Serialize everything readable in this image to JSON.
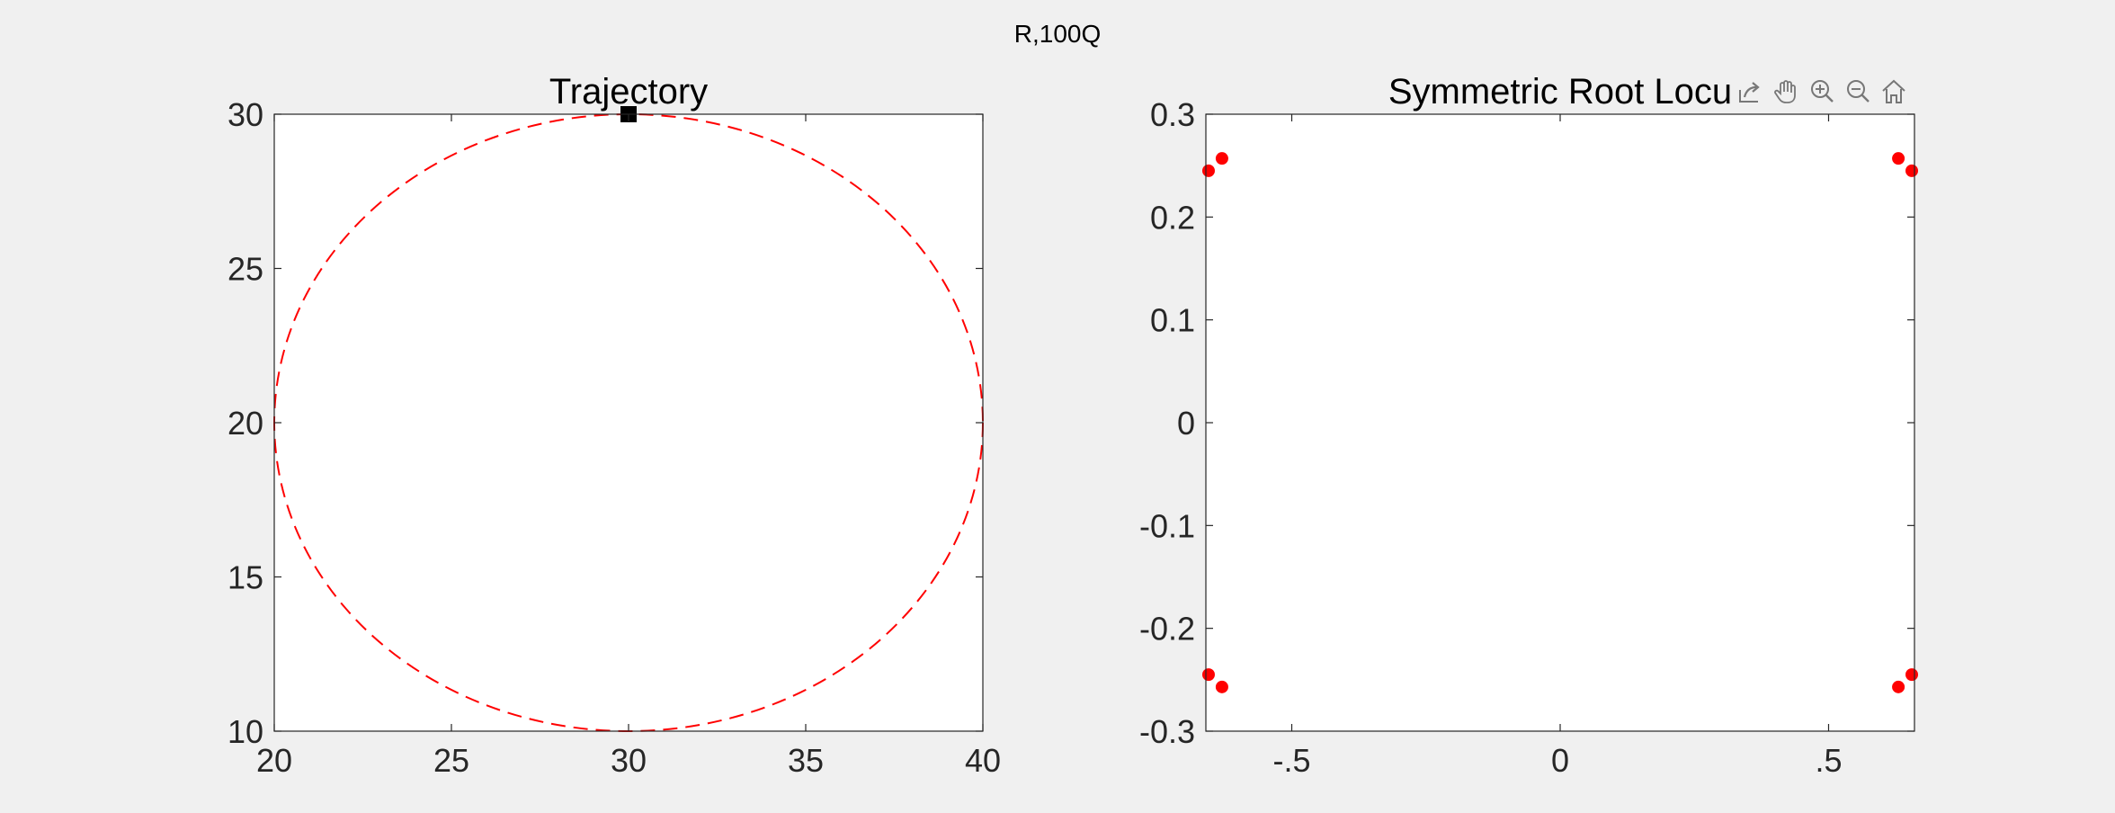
{
  "figure": {
    "title": "R,100Q",
    "background": "#f0f0f0"
  },
  "toolbar": {
    "buttons": [
      {
        "name": "export-icon"
      },
      {
        "name": "pan-hand-icon"
      },
      {
        "name": "zoom-in-icon"
      },
      {
        "name": "zoom-out-icon"
      },
      {
        "name": "home-icon"
      }
    ]
  },
  "chart_data": [
    {
      "type": "line",
      "title": "Trajectory",
      "xlabel": "",
      "ylabel": "",
      "xlim": [
        20,
        40
      ],
      "ylim": [
        10,
        30
      ],
      "xticks": [
        20,
        25,
        30,
        35,
        40
      ],
      "yticks": [
        10,
        15,
        20,
        25,
        30
      ],
      "grid": false,
      "series": [
        {
          "kind": "circle",
          "center": [
            30,
            20
          ],
          "radius": 10,
          "style": "dashed",
          "color": "#ff0000"
        },
        {
          "kind": "marker",
          "x": [
            30
          ],
          "y": [
            30
          ],
          "marker": "square",
          "color": "#000000"
        }
      ]
    },
    {
      "type": "scatter",
      "title": "Symmetric Root Locu",
      "xlabel": "",
      "ylabel": "",
      "xlim": [
        -0.66,
        0.66
      ],
      "ylim": [
        -0.3,
        0.3
      ],
      "xticks": [
        -0.5,
        0,
        0.5
      ],
      "yticks": [
        -0.3,
        -0.2,
        -0.1,
        0,
        0.1,
        0.2,
        0.3
      ],
      "grid": false,
      "series": [
        {
          "marker": "circle",
          "color": "#ff0000",
          "points": [
            [
              -0.655,
              0.245
            ],
            [
              -0.63,
              0.257
            ],
            [
              0.63,
              0.257
            ],
            [
              0.655,
              0.245
            ],
            [
              -0.655,
              -0.245
            ],
            [
              -0.63,
              -0.257
            ],
            [
              0.63,
              -0.257
            ],
            [
              0.655,
              -0.245
            ]
          ]
        }
      ]
    }
  ]
}
